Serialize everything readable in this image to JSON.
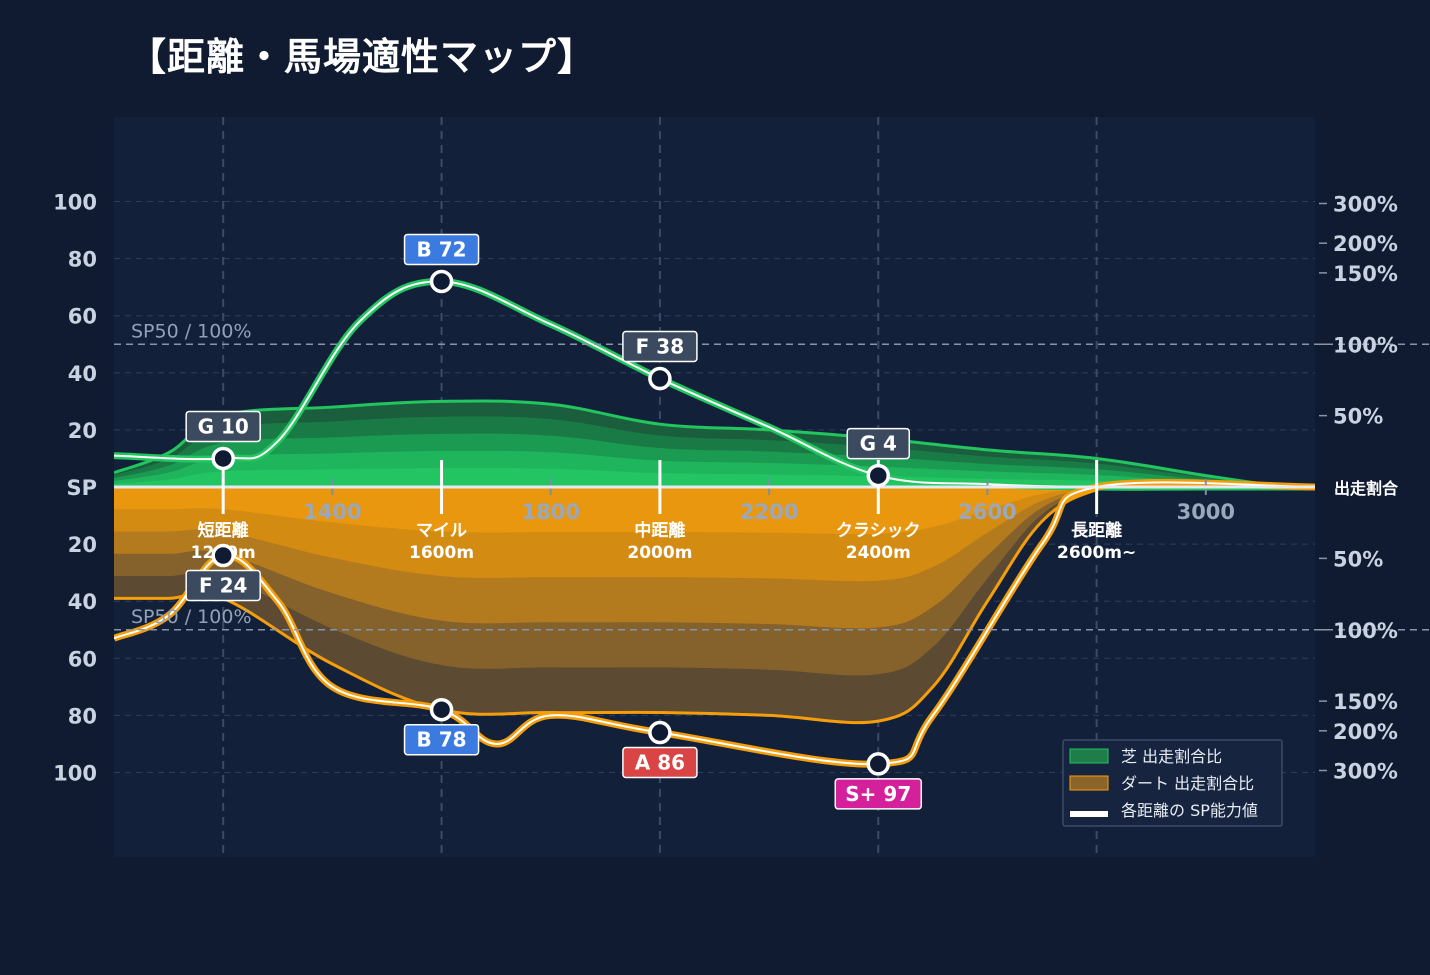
{
  "title": "【距離・馬場適性マップ】",
  "colors": {
    "background": "#101a30",
    "plot_bg": "#13203a",
    "turf": "#22c55e",
    "dirt": "#f59e0b",
    "grid": "#2e3e5a",
    "badge_gray": "#3b4a5e",
    "badge_blue": "#3b7be0",
    "badge_red": "#d94545",
    "badge_magenta": "#d4209a"
  },
  "chart_data": {
    "type": "area",
    "x_ticks": [
      "1400",
      "1800",
      "2200",
      "2600",
      "3000"
    ],
    "xlim": [
      1000,
      3200
    ],
    "left_ticks_top": [
      "100",
      "80",
      "60",
      "40",
      "20"
    ],
    "left_center_label": "SP",
    "left_ticks_bottom": [
      "20",
      "40",
      "60",
      "80",
      "100"
    ],
    "ylim_top": [
      0,
      100
    ],
    "ylim_bottom": [
      0,
      100
    ],
    "right_ticks_top": [
      {
        "label": "300%",
        "sp": 99.3
      },
      {
        "label": "200%",
        "sp": 85.4
      },
      {
        "label": "150%",
        "sp": 75
      },
      {
        "label": "100%",
        "sp": 50
      },
      {
        "label": "50%",
        "sp": 25
      }
    ],
    "right_center_label": "出走割合",
    "right_ticks_bottom": [
      {
        "label": "50%",
        "sp": 25
      },
      {
        "label": "100%",
        "sp": 50
      },
      {
        "label": "150%",
        "sp": 75
      },
      {
        "label": "200%",
        "sp": 85.4
      },
      {
        "label": "300%",
        "sp": 99.3
      }
    ],
    "reference_lines": [
      {
        "label": "SP50 / 100%",
        "side": "top",
        "value": 50
      },
      {
        "label": "SP50 / 100%",
        "side": "bottom",
        "value": 50
      }
    ],
    "categories": [
      {
        "name": "短距離",
        "distance": "1200m",
        "x": 1200
      },
      {
        "name": "マイル",
        "distance": "1600m",
        "x": 1600
      },
      {
        "name": "中距離",
        "distance": "2000m",
        "x": 2000
      },
      {
        "name": "クラシック",
        "distance": "2400m",
        "x": 2400
      },
      {
        "name": "長距離",
        "distance": "2600m~",
        "x": 2800
      }
    ],
    "turf_share": {
      "x": [
        1000,
        1100,
        1200,
        1400,
        1600,
        1800,
        2000,
        2200,
        2400,
        2600,
        2800,
        3000,
        3150,
        3200
      ],
      "values": [
        5,
        12,
        25,
        28,
        30,
        29,
        22,
        20,
        17,
        13,
        10,
        4,
        0,
        0
      ]
    },
    "dirt_share": {
      "x": [
        1000,
        1100,
        1200,
        1400,
        1600,
        1800,
        2000,
        2200,
        2400,
        2500,
        2600,
        2700,
        2800,
        2900,
        3200
      ],
      "values": [
        39,
        39,
        39,
        62,
        78,
        79,
        79,
        80,
        82,
        70,
        40,
        12,
        1,
        0,
        0
      ]
    },
    "series": [
      {
        "name": "芝 出走割合比",
        "side": "top",
        "x": [
          1000,
          1200,
          1300,
          1450,
          1600,
          1800,
          2000,
          2200,
          2400,
          2600,
          2800,
          3000,
          3200
        ],
        "values": [
          11,
          10,
          16,
          58,
          72,
          57,
          38,
          21,
          4,
          1,
          0,
          0,
          0
        ],
        "points": [
          {
            "x": 1200,
            "sp": 10,
            "rank": "G",
            "label": "G 10",
            "badge": "gray"
          },
          {
            "x": 1600,
            "sp": 72,
            "rank": "B",
            "label": "B 72",
            "badge": "blue"
          },
          {
            "x": 2000,
            "sp": 38,
            "rank": "F",
            "label": "F 38",
            "badge": "gray"
          },
          {
            "x": 2400,
            "sp": 4,
            "rank": "G",
            "label": "G 4",
            "badge": "gray"
          }
        ]
      },
      {
        "name": "ダート 出走割合比",
        "side": "bottom",
        "x": [
          1000,
          1100,
          1200,
          1300,
          1400,
          1600,
          1700,
          1800,
          2000,
          2400,
          2500,
          2700,
          2800,
          3200
        ],
        "values": [
          53,
          45,
          24,
          40,
          70,
          78,
          90,
          80,
          86,
          97,
          80,
          20,
          0,
          0
        ],
        "points": [
          {
            "x": 1200,
            "sp": 24,
            "rank": "F",
            "label": "F 24",
            "badge": "gray"
          },
          {
            "x": 1600,
            "sp": 78,
            "rank": "B",
            "label": "B 78",
            "badge": "blue"
          },
          {
            "x": 2000,
            "sp": 86,
            "rank": "A",
            "label": "A 86",
            "badge": "red"
          },
          {
            "x": 2400,
            "sp": 97,
            "rank": "S+",
            "label": "S+ 97",
            "badge": "magenta"
          }
        ]
      }
    ],
    "legend": {
      "position": "bottom-right",
      "items": [
        {
          "label": "芝 出走割合比",
          "swatch": "turf"
        },
        {
          "label": "ダート 出走割合比",
          "swatch": "dirt"
        },
        {
          "label": "各距離の SP能力値",
          "swatch": "line"
        }
      ]
    }
  }
}
